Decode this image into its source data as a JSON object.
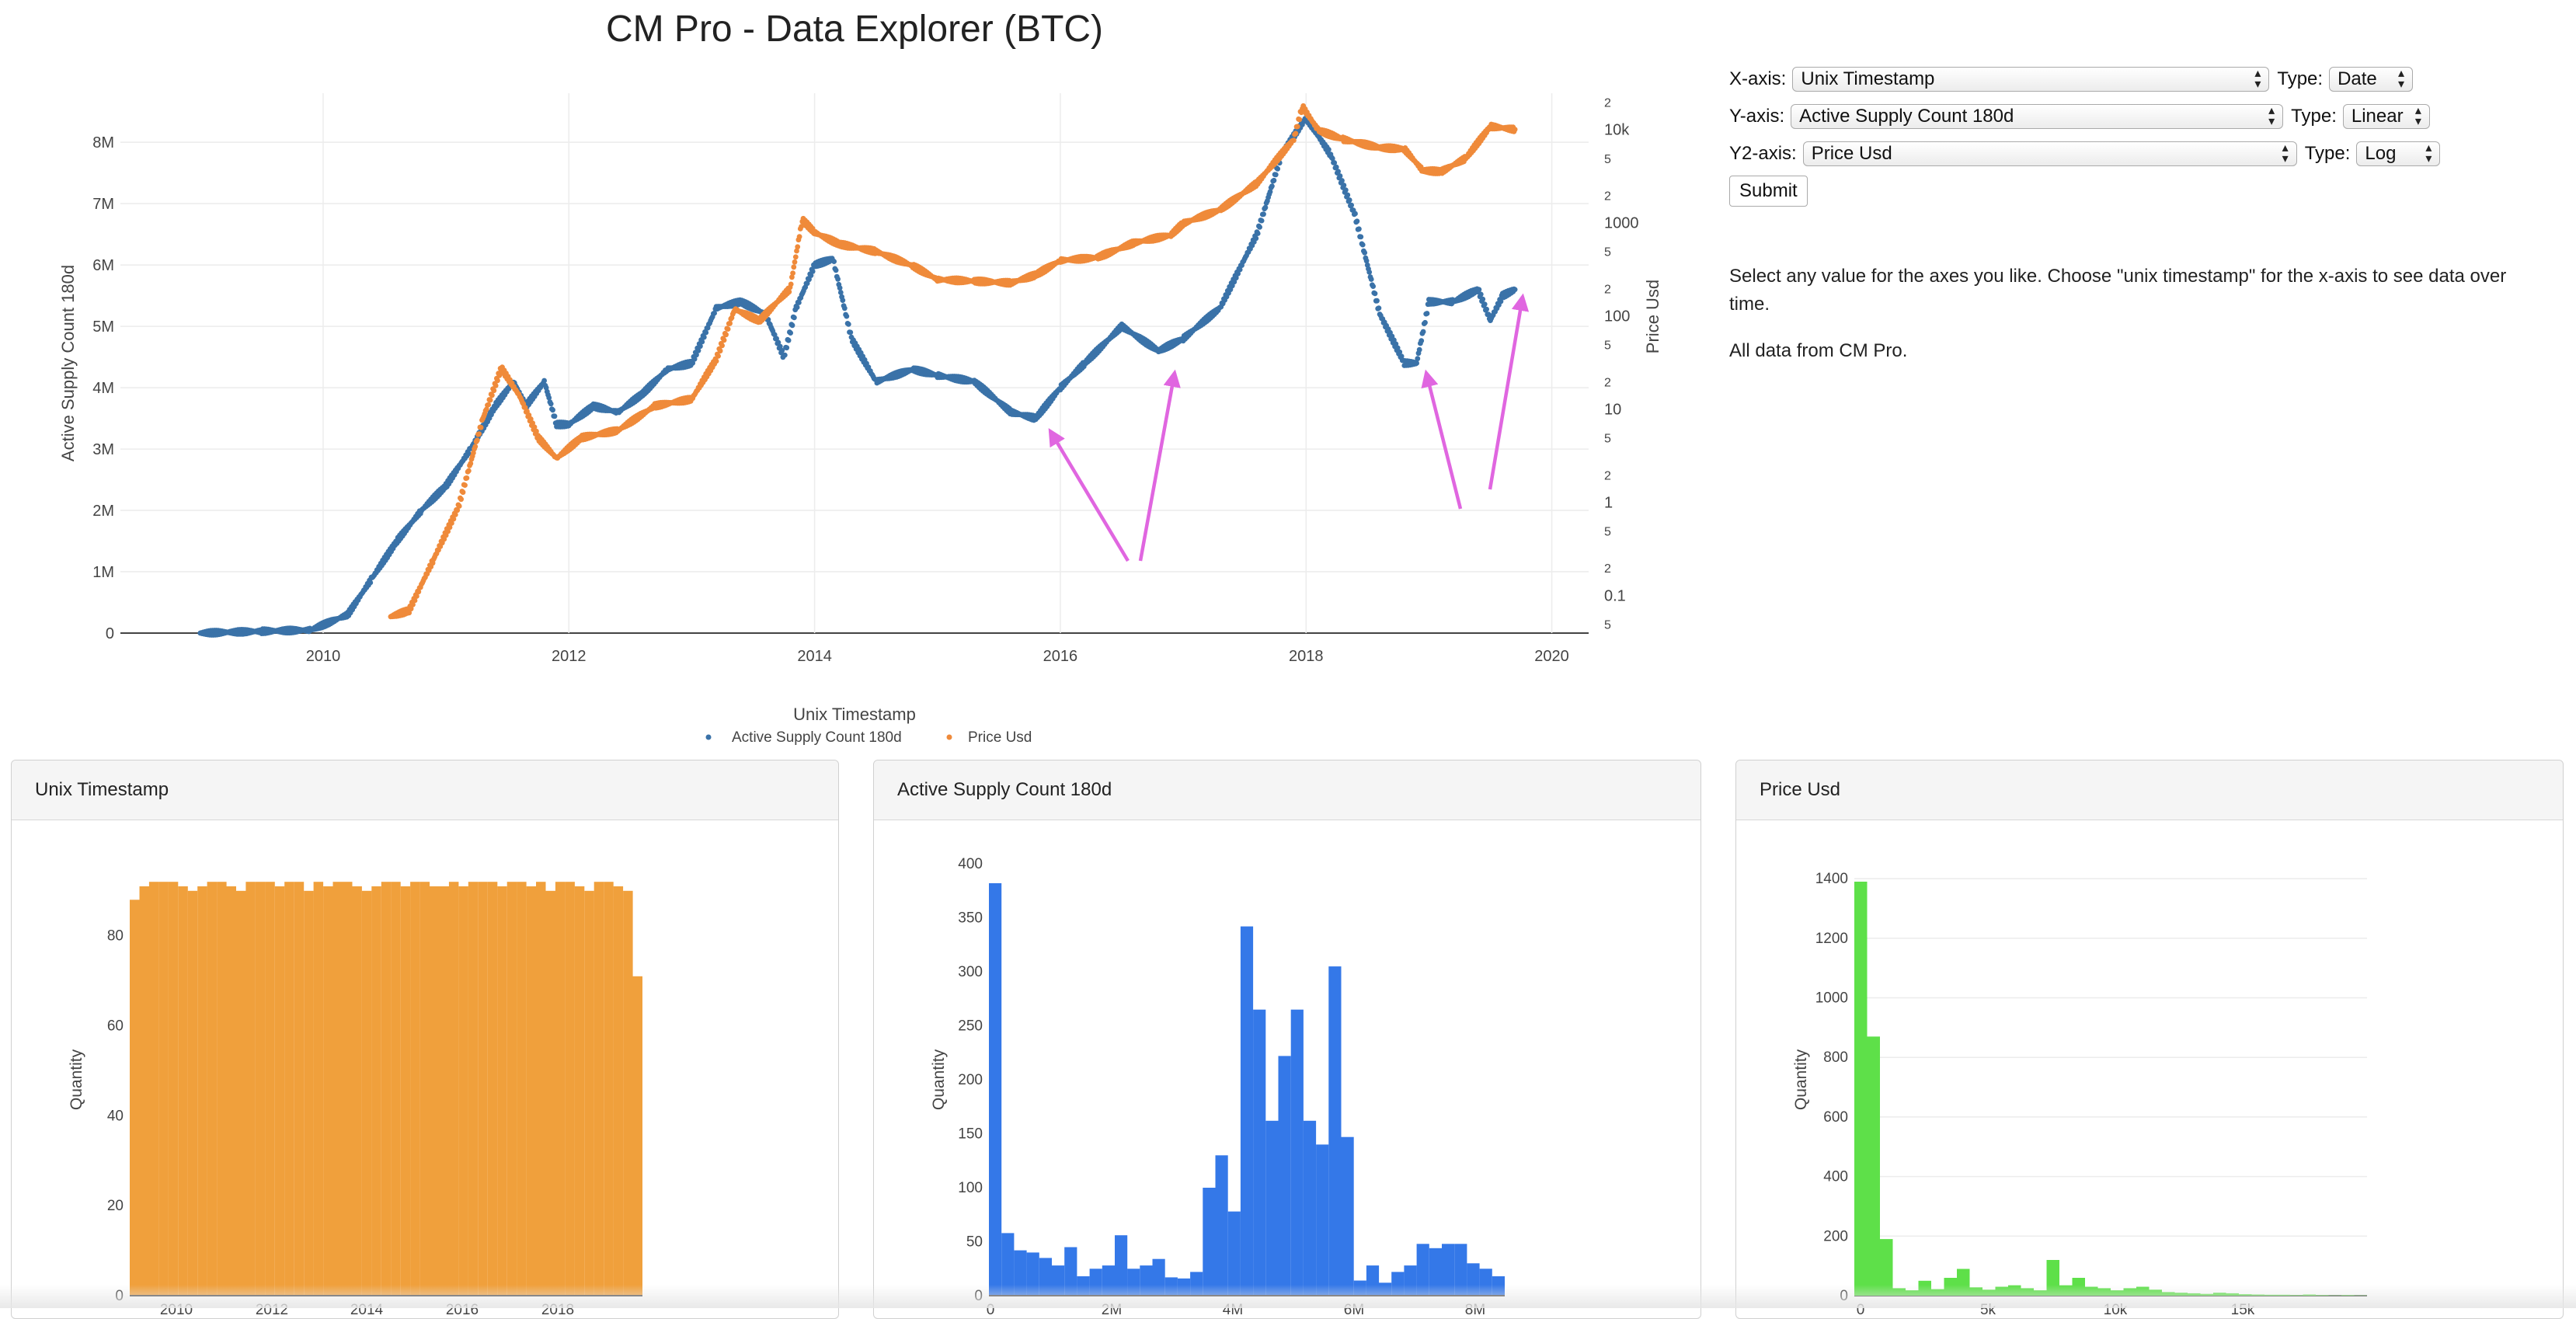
{
  "page": {
    "title": "CM Pro - Data Explorer (BTC)"
  },
  "controls": {
    "x_axis": {
      "label": "X-axis:",
      "value": "Unix Timestamp",
      "type_label": "Type:",
      "type_value": "Date"
    },
    "y_axis": {
      "label": "Y-axis:",
      "value": "Active Supply Count 180d",
      "type_label": "Type:",
      "type_value": "Linear"
    },
    "y2_axis": {
      "label": "Y2-axis:",
      "value": "Price Usd",
      "type_label": "Type:",
      "type_value": "Log"
    },
    "submit_label": "Submit"
  },
  "info": {
    "line1": "Select any value for the axes you like. Choose \"unix timestamp\" for the x-axis to see data over time.",
    "line2": "All data from CM Pro."
  },
  "annotations": {
    "arrow_color": "#e066e0"
  },
  "chart_data": [
    {
      "type": "scatter",
      "title": "",
      "xlabel": "Unix Timestamp",
      "ylabel": "Active Supply Count 180d",
      "y2label": "Price Usd",
      "x_ticks": [
        "2010",
        "2012",
        "2014",
        "2016",
        "2018",
        "2020"
      ],
      "y_ticks": [
        "0",
        "1M",
        "2M",
        "3M",
        "4M",
        "5M",
        "6M",
        "7M",
        "8M"
      ],
      "y2_ticks": [
        "5",
        "0.1",
        "2",
        "5",
        "1",
        "2",
        "5",
        "10",
        "2",
        "5",
        "100",
        "2",
        "5",
        "1000",
        "2",
        "5",
        "10k",
        "2"
      ],
      "ylim": [
        0,
        8800000
      ],
      "y2_scale": "log",
      "legend_position": "bottom-center",
      "grid": true,
      "series": [
        {
          "name": "Active Supply Count 180d",
          "color": "#3a72a8",
          "x": [
            2009.0,
            2009.5,
            2009.9,
            2010.2,
            2010.4,
            2010.6,
            2010.8,
            2011.0,
            2011.2,
            2011.4,
            2011.55,
            2011.65,
            2011.8,
            2011.9,
            2012.0,
            2012.2,
            2012.4,
            2012.6,
            2012.8,
            2013.0,
            2013.2,
            2013.4,
            2013.6,
            2013.75,
            2013.85,
            2014.0,
            2014.15,
            2014.3,
            2014.5,
            2014.8,
            2015.0,
            2015.3,
            2015.6,
            2015.8,
            2016.0,
            2016.2,
            2016.5,
            2016.8,
            2017.0,
            2017.3,
            2017.6,
            2017.8,
            2018.0,
            2018.2,
            2018.4,
            2018.6,
            2018.8,
            2018.9,
            2019.0,
            2019.2,
            2019.4,
            2019.5,
            2019.6,
            2019.7
          ],
          "y": [
            0,
            30000,
            50000,
            300000,
            900000,
            1500000,
            2000000,
            2400000,
            3000000,
            3700000,
            4100000,
            3700000,
            4100000,
            3400000,
            3400000,
            3700000,
            3600000,
            3900000,
            4300000,
            4400000,
            5300000,
            5400000,
            5200000,
            4500000,
            5300000,
            6000000,
            6100000,
            4800000,
            4100000,
            4300000,
            4200000,
            4100000,
            3600000,
            3500000,
            4000000,
            4400000,
            5000000,
            4600000,
            4800000,
            5300000,
            6500000,
            7800000,
            8400000,
            7800000,
            6800000,
            5200000,
            4400000,
            4400000,
            5400000,
            5400000,
            5600000,
            5100000,
            5500000,
            5600000
          ]
        },
        {
          "name": "Price Usd",
          "color": "#ef8a3a",
          "x": [
            2010.55,
            2010.7,
            2010.9,
            2011.1,
            2011.3,
            2011.45,
            2011.6,
            2011.75,
            2011.9,
            2012.1,
            2012.4,
            2012.7,
            2013.0,
            2013.2,
            2013.35,
            2013.55,
            2013.8,
            2013.9,
            2014.0,
            2014.2,
            2014.5,
            2014.8,
            2015.0,
            2015.3,
            2015.6,
            2015.8,
            2016.0,
            2016.3,
            2016.6,
            2016.9,
            2017.0,
            2017.3,
            2017.6,
            2017.9,
            2017.97,
            2018.1,
            2018.3,
            2018.6,
            2018.8,
            2018.95,
            2019.1,
            2019.3,
            2019.5,
            2019.7
          ],
          "y": [
            0.06,
            0.07,
            0.25,
            0.9,
            8,
            28,
            14,
            5,
            3,
            5,
            6,
            11,
            13,
            35,
            120,
            90,
            200,
            1100,
            800,
            600,
            500,
            350,
            250,
            240,
            230,
            280,
            400,
            430,
            620,
            750,
            1000,
            1400,
            2700,
            8000,
            18000,
            10000,
            8000,
            6500,
            6300,
            3700,
            3600,
            5000,
            11000,
            10200
          ]
        }
      ]
    },
    {
      "type": "bar",
      "title": "Unix Timestamp",
      "xlabel": "",
      "ylabel": "Quantity",
      "ylim": [
        0,
        96
      ],
      "x_ticks": [
        "2010",
        "2012",
        "2014",
        "2016",
        "2018"
      ],
      "y_ticks": [
        "0",
        "20",
        "40",
        "60",
        "80"
      ],
      "color": "#f0a03c",
      "values": [
        88,
        91,
        92,
        92,
        92,
        91,
        90,
        91,
        92,
        92,
        91,
        90,
        92,
        92,
        92,
        91,
        92,
        92,
        90,
        92,
        91,
        92,
        92,
        91,
        90,
        91,
        92,
        92,
        91,
        92,
        92,
        91,
        91,
        92,
        91,
        92,
        92,
        92,
        91,
        92,
        92,
        91,
        92,
        90,
        92,
        92,
        91,
        90,
        92,
        92,
        91,
        90,
        71
      ]
    },
    {
      "type": "bar",
      "title": "Active Supply Count 180d",
      "xlabel": "",
      "ylabel": "Quantity",
      "ylim": [
        0,
        400
      ],
      "x_ticks": [
        "0",
        "2M",
        "4M",
        "6M",
        "8M"
      ],
      "y_ticks": [
        "0",
        "50",
        "100",
        "150",
        "200",
        "250",
        "300",
        "350",
        "400"
      ],
      "color": "#3478e8",
      "values": [
        382,
        58,
        42,
        40,
        35,
        28,
        45,
        18,
        25,
        28,
        56,
        25,
        28,
        34,
        17,
        16,
        22,
        100,
        130,
        78,
        342,
        265,
        162,
        222,
        265,
        162,
        140,
        305,
        147,
        14,
        28,
        12,
        22,
        28,
        48,
        44,
        48,
        48,
        30,
        25,
        18
      ]
    },
    {
      "type": "bar",
      "title": "Price Usd",
      "xlabel": "",
      "ylabel": "Quantity",
      "ylim": [
        0,
        1450
      ],
      "x_ticks": [
        "0",
        "5k",
        "10k",
        "15k"
      ],
      "y_ticks": [
        "0",
        "200",
        "400",
        "600",
        "800",
        "1000",
        "1200",
        "1400"
      ],
      "color": "#5ee049",
      "values": [
        1390,
        870,
        190,
        25,
        18,
        50,
        22,
        60,
        90,
        28,
        20,
        30,
        35,
        25,
        18,
        120,
        35,
        60,
        30,
        25,
        18,
        25,
        30,
        20,
        12,
        10,
        8,
        6,
        10,
        8,
        5,
        4,
        3,
        3,
        2,
        4,
        2,
        1,
        2,
        1
      ]
    }
  ]
}
